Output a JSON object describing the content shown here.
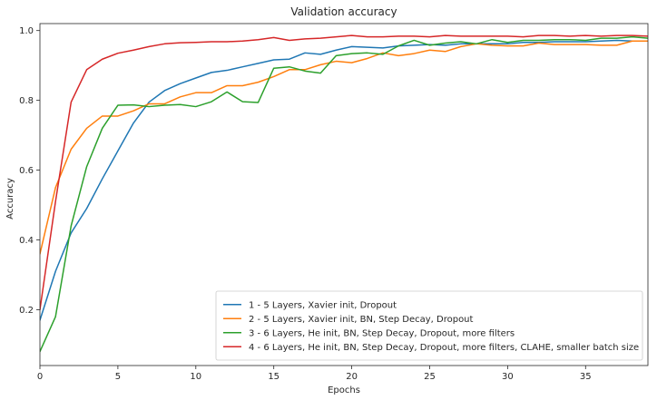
{
  "chart_data": {
    "type": "line",
    "title": "Validation accuracy",
    "xlabel": "Epochs",
    "ylabel": "Accuracy",
    "xlim": [
      0,
      39
    ],
    "ylim": [
      0.04,
      1.02
    ],
    "xticks": [
      0,
      5,
      10,
      15,
      20,
      25,
      30,
      35
    ],
    "yticks": [
      0.2,
      0.4,
      0.6,
      0.8,
      1.0
    ],
    "xtick_labels": [
      "0",
      "5",
      "10",
      "15",
      "20",
      "25",
      "30",
      "35"
    ],
    "ytick_labels": [
      "0.2",
      "0.4",
      "0.6",
      "0.8",
      "1.0"
    ],
    "grid": false,
    "legend_position": "lower-right",
    "x": [
      0,
      1,
      2,
      3,
      4,
      5,
      6,
      7,
      8,
      9,
      10,
      11,
      12,
      13,
      14,
      15,
      16,
      17,
      18,
      19,
      20,
      21,
      22,
      23,
      24,
      25,
      26,
      27,
      28,
      29,
      30,
      31,
      32,
      33,
      34,
      35,
      36,
      37,
      38,
      39
    ],
    "series": [
      {
        "name": "1 - 5 Layers, Xavier init, Dropout",
        "color": "#1f77b4",
        "values": [
          0.17,
          0.31,
          0.42,
          0.49,
          0.575,
          0.655,
          0.735,
          0.795,
          0.828,
          0.848,
          0.864,
          0.88,
          0.886,
          0.896,
          0.906,
          0.916,
          0.918,
          0.936,
          0.932,
          0.944,
          0.954,
          0.952,
          0.95,
          0.956,
          0.958,
          0.96,
          0.958,
          0.962,
          0.962,
          0.962,
          0.962,
          0.966,
          0.966,
          0.968,
          0.968,
          0.968,
          0.97,
          0.972,
          0.97,
          0.97
        ]
      },
      {
        "name": "2 - 5 Layers, Xavier init, BN, Step Decay, Dropout",
        "color": "#ff7f0e",
        "values": [
          0.36,
          0.55,
          0.66,
          0.72,
          0.755,
          0.755,
          0.77,
          0.79,
          0.79,
          0.81,
          0.822,
          0.822,
          0.842,
          0.842,
          0.852,
          0.868,
          0.888,
          0.888,
          0.902,
          0.912,
          0.908,
          0.92,
          0.936,
          0.928,
          0.934,
          0.944,
          0.94,
          0.954,
          0.962,
          0.958,
          0.956,
          0.956,
          0.964,
          0.96,
          0.96,
          0.96,
          0.958,
          0.958,
          0.97,
          0.97
        ]
      },
      {
        "name": "3 - 6 Layers, He init, BN, Step Decay, Dropout, more filters",
        "color": "#2ca02c",
        "values": [
          0.08,
          0.18,
          0.44,
          0.61,
          0.72,
          0.786,
          0.787,
          0.782,
          0.786,
          0.788,
          0.782,
          0.796,
          0.824,
          0.796,
          0.794,
          0.892,
          0.896,
          0.884,
          0.878,
          0.928,
          0.934,
          0.936,
          0.932,
          0.956,
          0.972,
          0.958,
          0.964,
          0.968,
          0.962,
          0.974,
          0.966,
          0.972,
          0.972,
          0.974,
          0.974,
          0.972,
          0.978,
          0.978,
          0.982,
          0.978
        ]
      },
      {
        "name": "4 - 6 Layers, He init, BN, Step Decay, Dropout, more filters, CLAHE, smaller batch size",
        "color": "#d62728",
        "values": [
          0.2,
          0.51,
          0.795,
          0.888,
          0.918,
          0.935,
          0.944,
          0.954,
          0.962,
          0.965,
          0.966,
          0.968,
          0.968,
          0.97,
          0.974,
          0.98,
          0.972,
          0.976,
          0.978,
          0.982,
          0.986,
          0.982,
          0.982,
          0.984,
          0.984,
          0.982,
          0.986,
          0.984,
          0.984,
          0.984,
          0.984,
          0.982,
          0.986,
          0.986,
          0.984,
          0.986,
          0.984,
          0.986,
          0.986,
          0.984
        ]
      }
    ]
  }
}
